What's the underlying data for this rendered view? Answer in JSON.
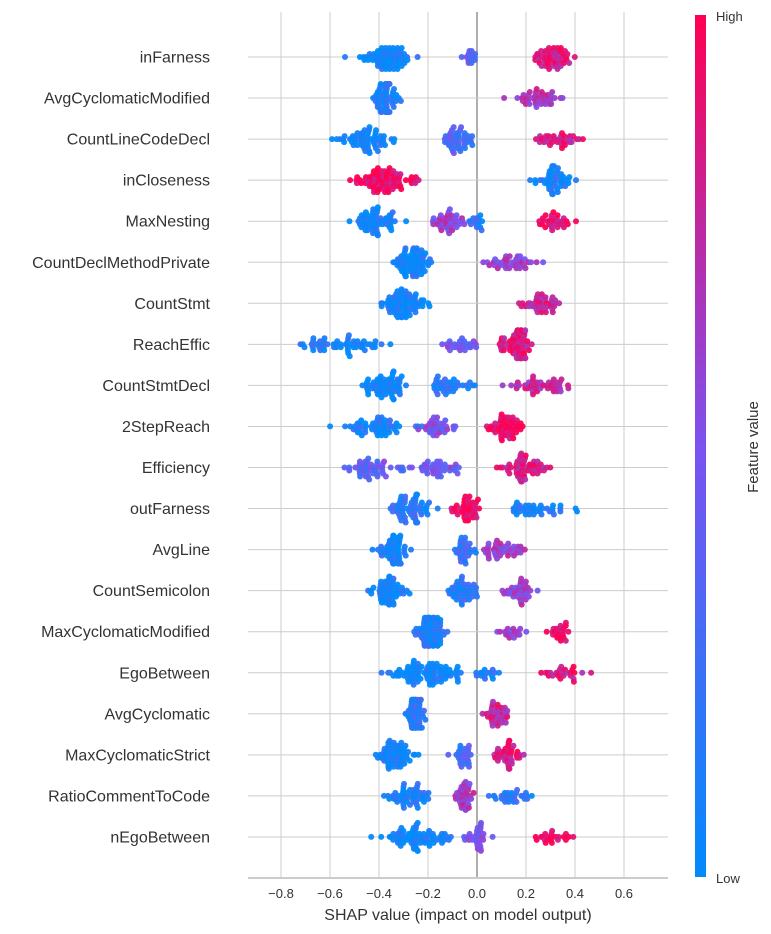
{
  "chart_data": {
    "type": "scatter",
    "subtype": "shap-beeswarm",
    "title": "",
    "xlabel": "SHAP value (impact on model output)",
    "ylabel": "",
    "xlim": [
      -0.92,
      0.78
    ],
    "x_ticks": [
      -0.8,
      -0.6,
      -0.4,
      -0.2,
      0.0,
      0.2,
      0.4,
      0.6
    ],
    "x_tick_labels": [
      "−0.8",
      "−0.6",
      "−0.4",
      "−0.2",
      "0.0",
      "0.2",
      "0.4",
      "0.6"
    ],
    "grid": true,
    "colorbar": {
      "title": "Feature value",
      "high_label": "High",
      "low_label": "Low",
      "low_color": "#008bfb",
      "mid_color": "#7c52f0",
      "high_color": "#ff0052",
      "placement": "right"
    },
    "features": [
      {
        "name": "inFarness",
        "clusters": [
          {
            "center": -0.38,
            "spread": 0.1,
            "count": 70,
            "fv": 0.05,
            "min": -0.64,
            "max": -0.12
          },
          {
            "center": -0.02,
            "spread": 0.03,
            "count": 14,
            "fv": 0.4,
            "min": -0.08,
            "max": 0.04
          },
          {
            "center": 0.3,
            "spread": 0.07,
            "count": 55,
            "fv": 0.85,
            "min": 0.17,
            "max": 0.53
          }
        ]
      },
      {
        "name": "AvgCyclomaticModified",
        "clusters": [
          {
            "center": -0.37,
            "spread": 0.04,
            "count": 65,
            "fv": 0.12,
            "min": -0.47,
            "max": -0.27
          },
          {
            "center": 0.25,
            "spread": 0.08,
            "count": 40,
            "fv": 0.7,
            "min": 0.04,
            "max": 0.43
          }
        ]
      },
      {
        "name": "CountLineCodeDecl",
        "clusters": [
          {
            "center": -0.45,
            "spread": 0.09,
            "count": 60,
            "fv": 0.05,
            "min": -0.67,
            "max": -0.32
          },
          {
            "center": -0.08,
            "spread": 0.06,
            "count": 45,
            "fv": 0.3,
            "min": -0.22,
            "max": 0.05
          },
          {
            "center": 0.33,
            "spread": 0.08,
            "count": 35,
            "fv": 0.85,
            "min": 0.18,
            "max": 0.7
          }
        ]
      },
      {
        "name": "inCloseness",
        "clusters": [
          {
            "center": -0.38,
            "spread": 0.1,
            "count": 80,
            "fv": 0.95,
            "min": -0.7,
            "max": -0.14
          },
          {
            "center": 0.3,
            "spread": 0.07,
            "count": 50,
            "fv": 0.08,
            "min": 0.12,
            "max": 0.44
          }
        ]
      },
      {
        "name": "MaxNesting",
        "clusters": [
          {
            "center": -0.42,
            "spread": 0.08,
            "count": 60,
            "fv": 0.05,
            "min": -0.63,
            "max": -0.26
          },
          {
            "center": -0.12,
            "spread": 0.06,
            "count": 40,
            "fv": 0.6,
            "min": -0.24,
            "max": -0.02
          },
          {
            "center": 0.0,
            "spread": 0.03,
            "count": 15,
            "fv": 0.15,
            "min": -0.04,
            "max": 0.08
          },
          {
            "center": 0.32,
            "spread": 0.06,
            "count": 30,
            "fv": 0.9,
            "min": 0.2,
            "max": 0.56
          }
        ]
      },
      {
        "name": "CountDeclMethodPrivate",
        "clusters": [
          {
            "center": -0.27,
            "spread": 0.06,
            "count": 70,
            "fv": 0.05,
            "min": -0.51,
            "max": -0.18
          },
          {
            "center": 0.15,
            "spread": 0.1,
            "count": 40,
            "fv": 0.6,
            "min": 0.0,
            "max": 0.34
          }
        ]
      },
      {
        "name": "CountStmt",
        "clusters": [
          {
            "center": -0.3,
            "spread": 0.06,
            "count": 75,
            "fv": 0.05,
            "min": -0.4,
            "max": -0.01
          },
          {
            "center": 0.27,
            "spread": 0.07,
            "count": 40,
            "fv": 0.8,
            "min": 0.13,
            "max": 0.48
          }
        ]
      },
      {
        "name": "ReachEffic",
        "clusters": [
          {
            "center": -0.55,
            "spread": 0.15,
            "count": 55,
            "fv": 0.08,
            "min": -0.86,
            "max": -0.25
          },
          {
            "center": -0.07,
            "spread": 0.06,
            "count": 25,
            "fv": 0.45,
            "min": -0.2,
            "max": 0.0
          },
          {
            "center": 0.16,
            "spread": 0.06,
            "count": 65,
            "fv": 0.85,
            "min": 0.0,
            "max": 0.39
          }
        ]
      },
      {
        "name": "CountStmtDecl",
        "clusters": [
          {
            "center": -0.38,
            "spread": 0.08,
            "count": 60,
            "fv": 0.05,
            "min": -0.56,
            "max": -0.2
          },
          {
            "center": -0.1,
            "spread": 0.07,
            "count": 35,
            "fv": 0.15,
            "min": -0.24,
            "max": 0.04
          },
          {
            "center": 0.25,
            "spread": 0.1,
            "count": 45,
            "fv": 0.75,
            "min": 0.08,
            "max": 0.53
          }
        ]
      },
      {
        "name": "2StepReach",
        "clusters": [
          {
            "center": -0.4,
            "spread": 0.12,
            "count": 55,
            "fv": 0.1,
            "min": -0.75,
            "max": -0.22
          },
          {
            "center": -0.17,
            "spread": 0.06,
            "count": 35,
            "fv": 0.5,
            "min": -0.26,
            "max": -0.02
          },
          {
            "center": 0.12,
            "spread": 0.06,
            "count": 50,
            "fv": 0.95,
            "min": 0.02,
            "max": 0.36
          }
        ]
      },
      {
        "name": "Efficiency",
        "clusters": [
          {
            "center": -0.4,
            "spread": 0.1,
            "count": 50,
            "fv": 0.4,
            "min": -0.6,
            "max": -0.22
          },
          {
            "center": -0.15,
            "spread": 0.07,
            "count": 35,
            "fv": 0.45,
            "min": -0.26,
            "max": -0.02
          },
          {
            "center": 0.2,
            "spread": 0.08,
            "count": 55,
            "fv": 0.85,
            "min": 0.01,
            "max": 0.4
          }
        ]
      },
      {
        "name": "outFarness",
        "clusters": [
          {
            "center": -0.28,
            "spread": 0.08,
            "count": 60,
            "fv": 0.15,
            "min": -0.48,
            "max": -0.15
          },
          {
            "center": -0.05,
            "spread": 0.05,
            "count": 40,
            "fv": 0.95,
            "min": -0.15,
            "max": 0.08
          },
          {
            "center": 0.25,
            "spread": 0.1,
            "count": 40,
            "fv": 0.08,
            "min": 0.13,
            "max": 0.63
          }
        ]
      },
      {
        "name": "AvgLine",
        "clusters": [
          {
            "center": -0.34,
            "spread": 0.06,
            "count": 55,
            "fv": 0.05,
            "min": -0.45,
            "max": -0.23
          },
          {
            "center": -0.05,
            "spread": 0.04,
            "count": 30,
            "fv": 0.2,
            "min": -0.13,
            "max": 0.0
          },
          {
            "center": 0.12,
            "spread": 0.07,
            "count": 40,
            "fv": 0.6,
            "min": 0.0,
            "max": 0.26
          }
        ]
      },
      {
        "name": "CountSemicolon",
        "clusters": [
          {
            "center": -0.36,
            "spread": 0.07,
            "count": 55,
            "fv": 0.05,
            "min": -0.51,
            "max": -0.27
          },
          {
            "center": -0.06,
            "spread": 0.06,
            "count": 45,
            "fv": 0.15,
            "min": -0.23,
            "max": 0.0
          },
          {
            "center": 0.18,
            "spread": 0.05,
            "count": 35,
            "fv": 0.6,
            "min": 0.0,
            "max": 0.26
          }
        ]
      },
      {
        "name": "MaxCyclomaticModified",
        "clusters": [
          {
            "center": -0.19,
            "spread": 0.05,
            "count": 80,
            "fv": 0.12,
            "min": -0.34,
            "max": -0.07
          },
          {
            "center": 0.14,
            "spread": 0.05,
            "count": 18,
            "fv": 0.6,
            "min": 0.01,
            "max": 0.22
          },
          {
            "center": 0.33,
            "spread": 0.04,
            "count": 22,
            "fv": 0.92,
            "min": 0.24,
            "max": 0.4
          }
        ]
      },
      {
        "name": "EgoBetween",
        "clusters": [
          {
            "center": -0.2,
            "spread": 0.12,
            "count": 85,
            "fv": 0.05,
            "min": -0.49,
            "max": 0.1
          },
          {
            "center": 0.03,
            "spread": 0.06,
            "count": 15,
            "fv": 0.12,
            "min": -0.02,
            "max": 0.13
          },
          {
            "center": 0.35,
            "spread": 0.08,
            "count": 25,
            "fv": 0.85,
            "min": 0.26,
            "max": 0.57
          }
        ]
      },
      {
        "name": "AvgCyclomatic",
        "clusters": [
          {
            "center": -0.25,
            "spread": 0.03,
            "count": 60,
            "fv": 0.15,
            "min": -0.32,
            "max": -0.15
          },
          {
            "center": 0.08,
            "spread": 0.05,
            "count": 35,
            "fv": 0.75,
            "min": -0.1,
            "max": 0.27
          }
        ]
      },
      {
        "name": "MaxCyclomaticStrict",
        "clusters": [
          {
            "center": -0.33,
            "spread": 0.06,
            "count": 60,
            "fv": 0.05,
            "min": -0.42,
            "max": -0.22
          },
          {
            "center": -0.05,
            "spread": 0.04,
            "count": 25,
            "fv": 0.3,
            "min": -0.15,
            "max": 0.03
          },
          {
            "center": 0.13,
            "spread": 0.05,
            "count": 40,
            "fv": 0.85,
            "min": 0.0,
            "max": 0.25
          }
        ]
      },
      {
        "name": "RatioCommentToCode",
        "clusters": [
          {
            "center": -0.28,
            "spread": 0.07,
            "count": 50,
            "fv": 0.08,
            "min": -0.42,
            "max": -0.15
          },
          {
            "center": -0.05,
            "spread": 0.04,
            "count": 35,
            "fv": 0.65,
            "min": -0.17,
            "max": 0.0
          },
          {
            "center": 0.15,
            "spread": 0.07,
            "count": 30,
            "fv": 0.15,
            "min": 0.0,
            "max": 0.39
          }
        ]
      },
      {
        "name": "nEgoBetween",
        "clusters": [
          {
            "center": -0.25,
            "spread": 0.1,
            "count": 75,
            "fv": 0.05,
            "min": -0.54,
            "max": -0.08
          },
          {
            "center": 0.0,
            "spread": 0.04,
            "count": 30,
            "fv": 0.45,
            "min": -0.08,
            "max": 0.1
          },
          {
            "center": 0.3,
            "spread": 0.07,
            "count": 22,
            "fv": 0.95,
            "min": 0.1,
            "max": 0.4
          }
        ]
      }
    ]
  }
}
